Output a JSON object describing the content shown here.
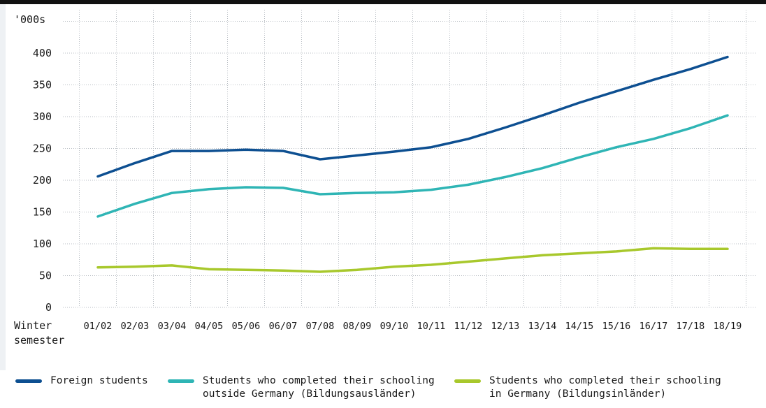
{
  "chart_data": {
    "type": "line",
    "ylabel": "'000s",
    "xlabel": "Winter\nsemester",
    "yticks": [
      0,
      50,
      100,
      150,
      200,
      250,
      300,
      350,
      400
    ],
    "ylim": [
      0,
      450
    ],
    "grid": true,
    "legend_position": "bottom",
    "categories": [
      "01/02",
      "02/03",
      "03/04",
      "04/05",
      "05/06",
      "06/07",
      "07/08",
      "08/09",
      "09/10",
      "10/11",
      "11/12",
      "12/13",
      "13/14",
      "14/15",
      "15/16",
      "16/17",
      "17/18",
      "18/19"
    ],
    "series": [
      {
        "name": "Foreign students",
        "color": "#0d4f91",
        "values": [
          206,
          227,
          246,
          246,
          248,
          246,
          233,
          239,
          245,
          252,
          265,
          283,
          302,
          322,
          340,
          358,
          375,
          394
        ]
      },
      {
        "name": "Students who completed their schooling\noutside Germany (Bildungsausländer)",
        "color": "#2fb5b5",
        "values": [
          143,
          163,
          180,
          186,
          189,
          188,
          178,
          180,
          181,
          185,
          193,
          205,
          219,
          236,
          252,
          265,
          282,
          302
        ]
      },
      {
        "name": "Students who completed their schooling\nin Germany (Bildungsinländer)",
        "color": "#a8c82c",
        "values": [
          63,
          64,
          66,
          60,
          59,
          58,
          56,
          59,
          64,
          67,
          72,
          77,
          82,
          85,
          88,
          93,
          92,
          92
        ]
      }
    ]
  }
}
